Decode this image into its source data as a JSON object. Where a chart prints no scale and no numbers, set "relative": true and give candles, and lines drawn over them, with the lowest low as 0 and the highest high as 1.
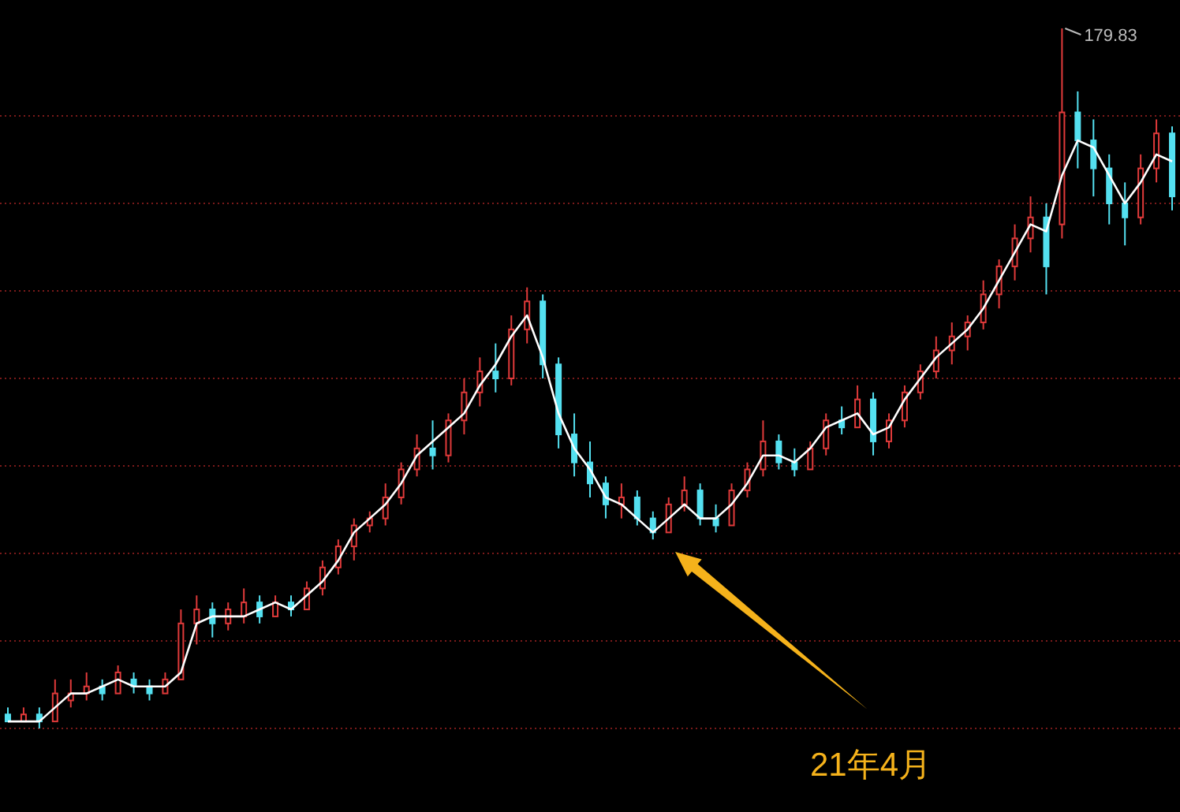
{
  "chart_data": {
    "type": "candlestick",
    "relative": true,
    "ref_lines": [
      {
        "axis": "y",
        "value": 0,
        "color": "#7a1a1a",
        "line_style": "dotted"
      },
      {
        "axis": "y",
        "value": 0.125,
        "color": "#7a1a1a",
        "line_style": "dotted"
      },
      {
        "axis": "y",
        "value": 0.25,
        "color": "#7a1a1a",
        "line_style": "dotted"
      },
      {
        "axis": "y",
        "value": 0.375,
        "color": "#7a1a1a",
        "line_style": "dotted"
      },
      {
        "axis": "y",
        "value": 0.5,
        "color": "#7a1a1a",
        "line_style": "dotted"
      },
      {
        "axis": "y",
        "value": 0.625,
        "color": "#7a1a1a",
        "line_style": "dotted"
      },
      {
        "axis": "y",
        "value": 0.75,
        "color": "#7a1a1a",
        "line_style": "dotted"
      },
      {
        "axis": "y",
        "value": 0.875,
        "color": "#7a1a1a",
        "line_style": "dotted"
      }
    ],
    "categories": [
      null,
      null,
      null,
      null,
      null,
      null,
      null,
      null,
      null,
      null,
      null,
      null,
      null,
      null,
      null,
      null,
      null,
      null,
      null,
      null,
      null,
      null,
      null,
      null,
      null,
      null,
      null,
      null,
      null,
      null,
      null,
      null,
      null,
      null,
      null,
      null,
      null,
      null,
      null,
      null,
      null,
      null,
      null,
      null,
      null,
      null,
      null,
      null,
      null,
      null,
      null,
      null,
      null,
      null,
      null,
      null,
      null,
      null,
      null,
      null,
      null,
      null,
      null,
      null,
      null,
      null,
      null,
      null,
      null,
      null,
      null,
      null,
      null,
      null,
      null
    ],
    "ohlc": [
      [
        0.02,
        0.03,
        0.01,
        0.01
      ],
      [
        0.01,
        0.03,
        0.01,
        0.02
      ],
      [
        0.02,
        0.03,
        0.0,
        0.01
      ],
      [
        0.01,
        0.07,
        0.01,
        0.05
      ],
      [
        0.04,
        0.07,
        0.03,
        0.05
      ],
      [
        0.05,
        0.08,
        0.04,
        0.06
      ],
      [
        0.06,
        0.07,
        0.04,
        0.05
      ],
      [
        0.05,
        0.09,
        0.05,
        0.08
      ],
      [
        0.07,
        0.08,
        0.05,
        0.06
      ],
      [
        0.06,
        0.07,
        0.04,
        0.05
      ],
      [
        0.05,
        0.08,
        0.05,
        0.07
      ],
      [
        0.07,
        0.17,
        0.07,
        0.15
      ],
      [
        0.15,
        0.19,
        0.12,
        0.17
      ],
      [
        0.17,
        0.18,
        0.13,
        0.15
      ],
      [
        0.15,
        0.18,
        0.14,
        0.17
      ],
      [
        0.16,
        0.2,
        0.15,
        0.18
      ],
      [
        0.18,
        0.19,
        0.15,
        0.16
      ],
      [
        0.16,
        0.19,
        0.16,
        0.18
      ],
      [
        0.18,
        0.19,
        0.16,
        0.17
      ],
      [
        0.17,
        0.21,
        0.17,
        0.2
      ],
      [
        0.2,
        0.24,
        0.19,
        0.23
      ],
      [
        0.23,
        0.27,
        0.22,
        0.26
      ],
      [
        0.26,
        0.3,
        0.24,
        0.29
      ],
      [
        0.29,
        0.31,
        0.28,
        0.3
      ],
      [
        0.3,
        0.35,
        0.29,
        0.33
      ],
      [
        0.33,
        0.38,
        0.32,
        0.37
      ],
      [
        0.37,
        0.42,
        0.36,
        0.4
      ],
      [
        0.4,
        0.44,
        0.37,
        0.39
      ],
      [
        0.39,
        0.45,
        0.38,
        0.44
      ],
      [
        0.44,
        0.5,
        0.42,
        0.48
      ],
      [
        0.48,
        0.53,
        0.46,
        0.51
      ],
      [
        0.51,
        0.55,
        0.48,
        0.5
      ],
      [
        0.5,
        0.59,
        0.49,
        0.57
      ],
      [
        0.57,
        0.63,
        0.55,
        0.61
      ],
      [
        0.61,
        0.62,
        0.5,
        0.52
      ],
      [
        0.52,
        0.53,
        0.4,
        0.42
      ],
      [
        0.42,
        0.45,
        0.36,
        0.38
      ],
      [
        0.38,
        0.41,
        0.33,
        0.35
      ],
      [
        0.35,
        0.36,
        0.3,
        0.32
      ],
      [
        0.32,
        0.35,
        0.3,
        0.33
      ],
      [
        0.33,
        0.34,
        0.29,
        0.3
      ],
      [
        0.3,
        0.31,
        0.27,
        0.28
      ],
      [
        0.28,
        0.33,
        0.28,
        0.32
      ],
      [
        0.32,
        0.36,
        0.31,
        0.34
      ],
      [
        0.34,
        0.35,
        0.29,
        0.3
      ],
      [
        0.3,
        0.32,
        0.28,
        0.29
      ],
      [
        0.29,
        0.35,
        0.29,
        0.34
      ],
      [
        0.34,
        0.38,
        0.33,
        0.37
      ],
      [
        0.37,
        0.44,
        0.36,
        0.41
      ],
      [
        0.41,
        0.42,
        0.37,
        0.38
      ],
      [
        0.38,
        0.4,
        0.36,
        0.37
      ],
      [
        0.37,
        0.41,
        0.37,
        0.4
      ],
      [
        0.4,
        0.45,
        0.39,
        0.44
      ],
      [
        0.44,
        0.46,
        0.42,
        0.43
      ],
      [
        0.43,
        0.49,
        0.43,
        0.47
      ],
      [
        0.47,
        0.48,
        0.39,
        0.41
      ],
      [
        0.41,
        0.45,
        0.4,
        0.44
      ],
      [
        0.44,
        0.49,
        0.43,
        0.48
      ],
      [
        0.48,
        0.52,
        0.47,
        0.51
      ],
      [
        0.51,
        0.56,
        0.5,
        0.54
      ],
      [
        0.54,
        0.58,
        0.52,
        0.56
      ],
      [
        0.56,
        0.59,
        0.54,
        0.58
      ],
      [
        0.58,
        0.64,
        0.57,
        0.62
      ],
      [
        0.62,
        0.67,
        0.6,
        0.66
      ],
      [
        0.66,
        0.72,
        0.64,
        0.7
      ],
      [
        0.7,
        0.76,
        0.68,
        0.73
      ],
      [
        0.73,
        0.75,
        0.62,
        0.66
      ],
      [
        0.72,
        1,
        0.7,
        0.88
      ],
      [
        0.88,
        0.91,
        0.8,
        0.84
      ],
      [
        0.84,
        0.87,
        0.76,
        0.8
      ],
      [
        0.8,
        0.82,
        0.72,
        0.75
      ],
      [
        0.75,
        0.78,
        0.69,
        0.73
      ],
      [
        0.73,
        0.82,
        0.72,
        0.8
      ],
      [
        0.8,
        0.87,
        0.78,
        0.85
      ],
      [
        0.85,
        0.86,
        0.74,
        0.76
      ]
    ],
    "colors": [
      "#54e0f0",
      "#e03a3a",
      "#54e0f0",
      "#e03a3a",
      "#e03a3a",
      "#e03a3a",
      "#54e0f0",
      "#e03a3a",
      "#54e0f0",
      "#54e0f0",
      "#e03a3a",
      "#e03a3a",
      "#e03a3a",
      "#54e0f0",
      "#e03a3a",
      "#e03a3a",
      "#54e0f0",
      "#e03a3a",
      "#54e0f0",
      "#e03a3a",
      "#e03a3a",
      "#e03a3a",
      "#e03a3a",
      "#e03a3a",
      "#e03a3a",
      "#e03a3a",
      "#e03a3a",
      "#54e0f0",
      "#e03a3a",
      "#e03a3a",
      "#e03a3a",
      "#54e0f0",
      "#e03a3a",
      "#e03a3a",
      "#54e0f0",
      "#54e0f0",
      "#54e0f0",
      "#54e0f0",
      "#54e0f0",
      "#e03a3a",
      "#54e0f0",
      "#54e0f0",
      "#e03a3a",
      "#e03a3a",
      "#54e0f0",
      "#54e0f0",
      "#e03a3a",
      "#e03a3a",
      "#e03a3a",
      "#54e0f0",
      "#54e0f0",
      "#e03a3a",
      "#e03a3a",
      "#54e0f0",
      "#e03a3a",
      "#54e0f0",
      "#e03a3a",
      "#e03a3a",
      "#e03a3a",
      "#e03a3a",
      "#e03a3a",
      "#e03a3a",
      "#e03a3a",
      "#e03a3a",
      "#e03a3a",
      "#e03a3a",
      "#54e0f0",
      "#e03a3a",
      "#54e0f0",
      "#54e0f0",
      "#54e0f0",
      "#54e0f0",
      "#e03a3a",
      "#e03a3a",
      "#54e0f0"
    ],
    "series": [
      {
        "type": "line",
        "color": "#ffffff",
        "values": [
          0.01,
          0.01,
          0.01,
          0.03,
          0.05,
          0.05,
          0.06,
          0.07,
          0.06,
          0.06,
          0.06,
          0.08,
          0.15,
          0.16,
          0.16,
          0.16,
          0.17,
          0.18,
          0.17,
          0.19,
          0.21,
          0.24,
          0.28,
          0.3,
          0.32,
          0.35,
          0.39,
          0.41,
          0.43,
          0.45,
          0.49,
          0.52,
          0.56,
          0.59,
          0.53,
          0.45,
          0.4,
          0.37,
          0.33,
          0.32,
          0.3,
          0.28,
          0.3,
          0.32,
          0.3,
          0.3,
          0.32,
          0.35,
          0.39,
          0.39,
          0.38,
          0.4,
          0.43,
          0.44,
          0.45,
          0.42,
          0.43,
          0.47,
          0.5,
          0.53,
          0.55,
          0.57,
          0.6,
          0.64,
          0.68,
          0.72,
          0.71,
          0.79,
          0.84,
          0.83,
          0.79,
          0.75,
          0.78,
          0.82,
          0.81
        ]
      }
    ],
    "annotations": [
      "179.83",
      "21年4月"
    ]
  }
}
